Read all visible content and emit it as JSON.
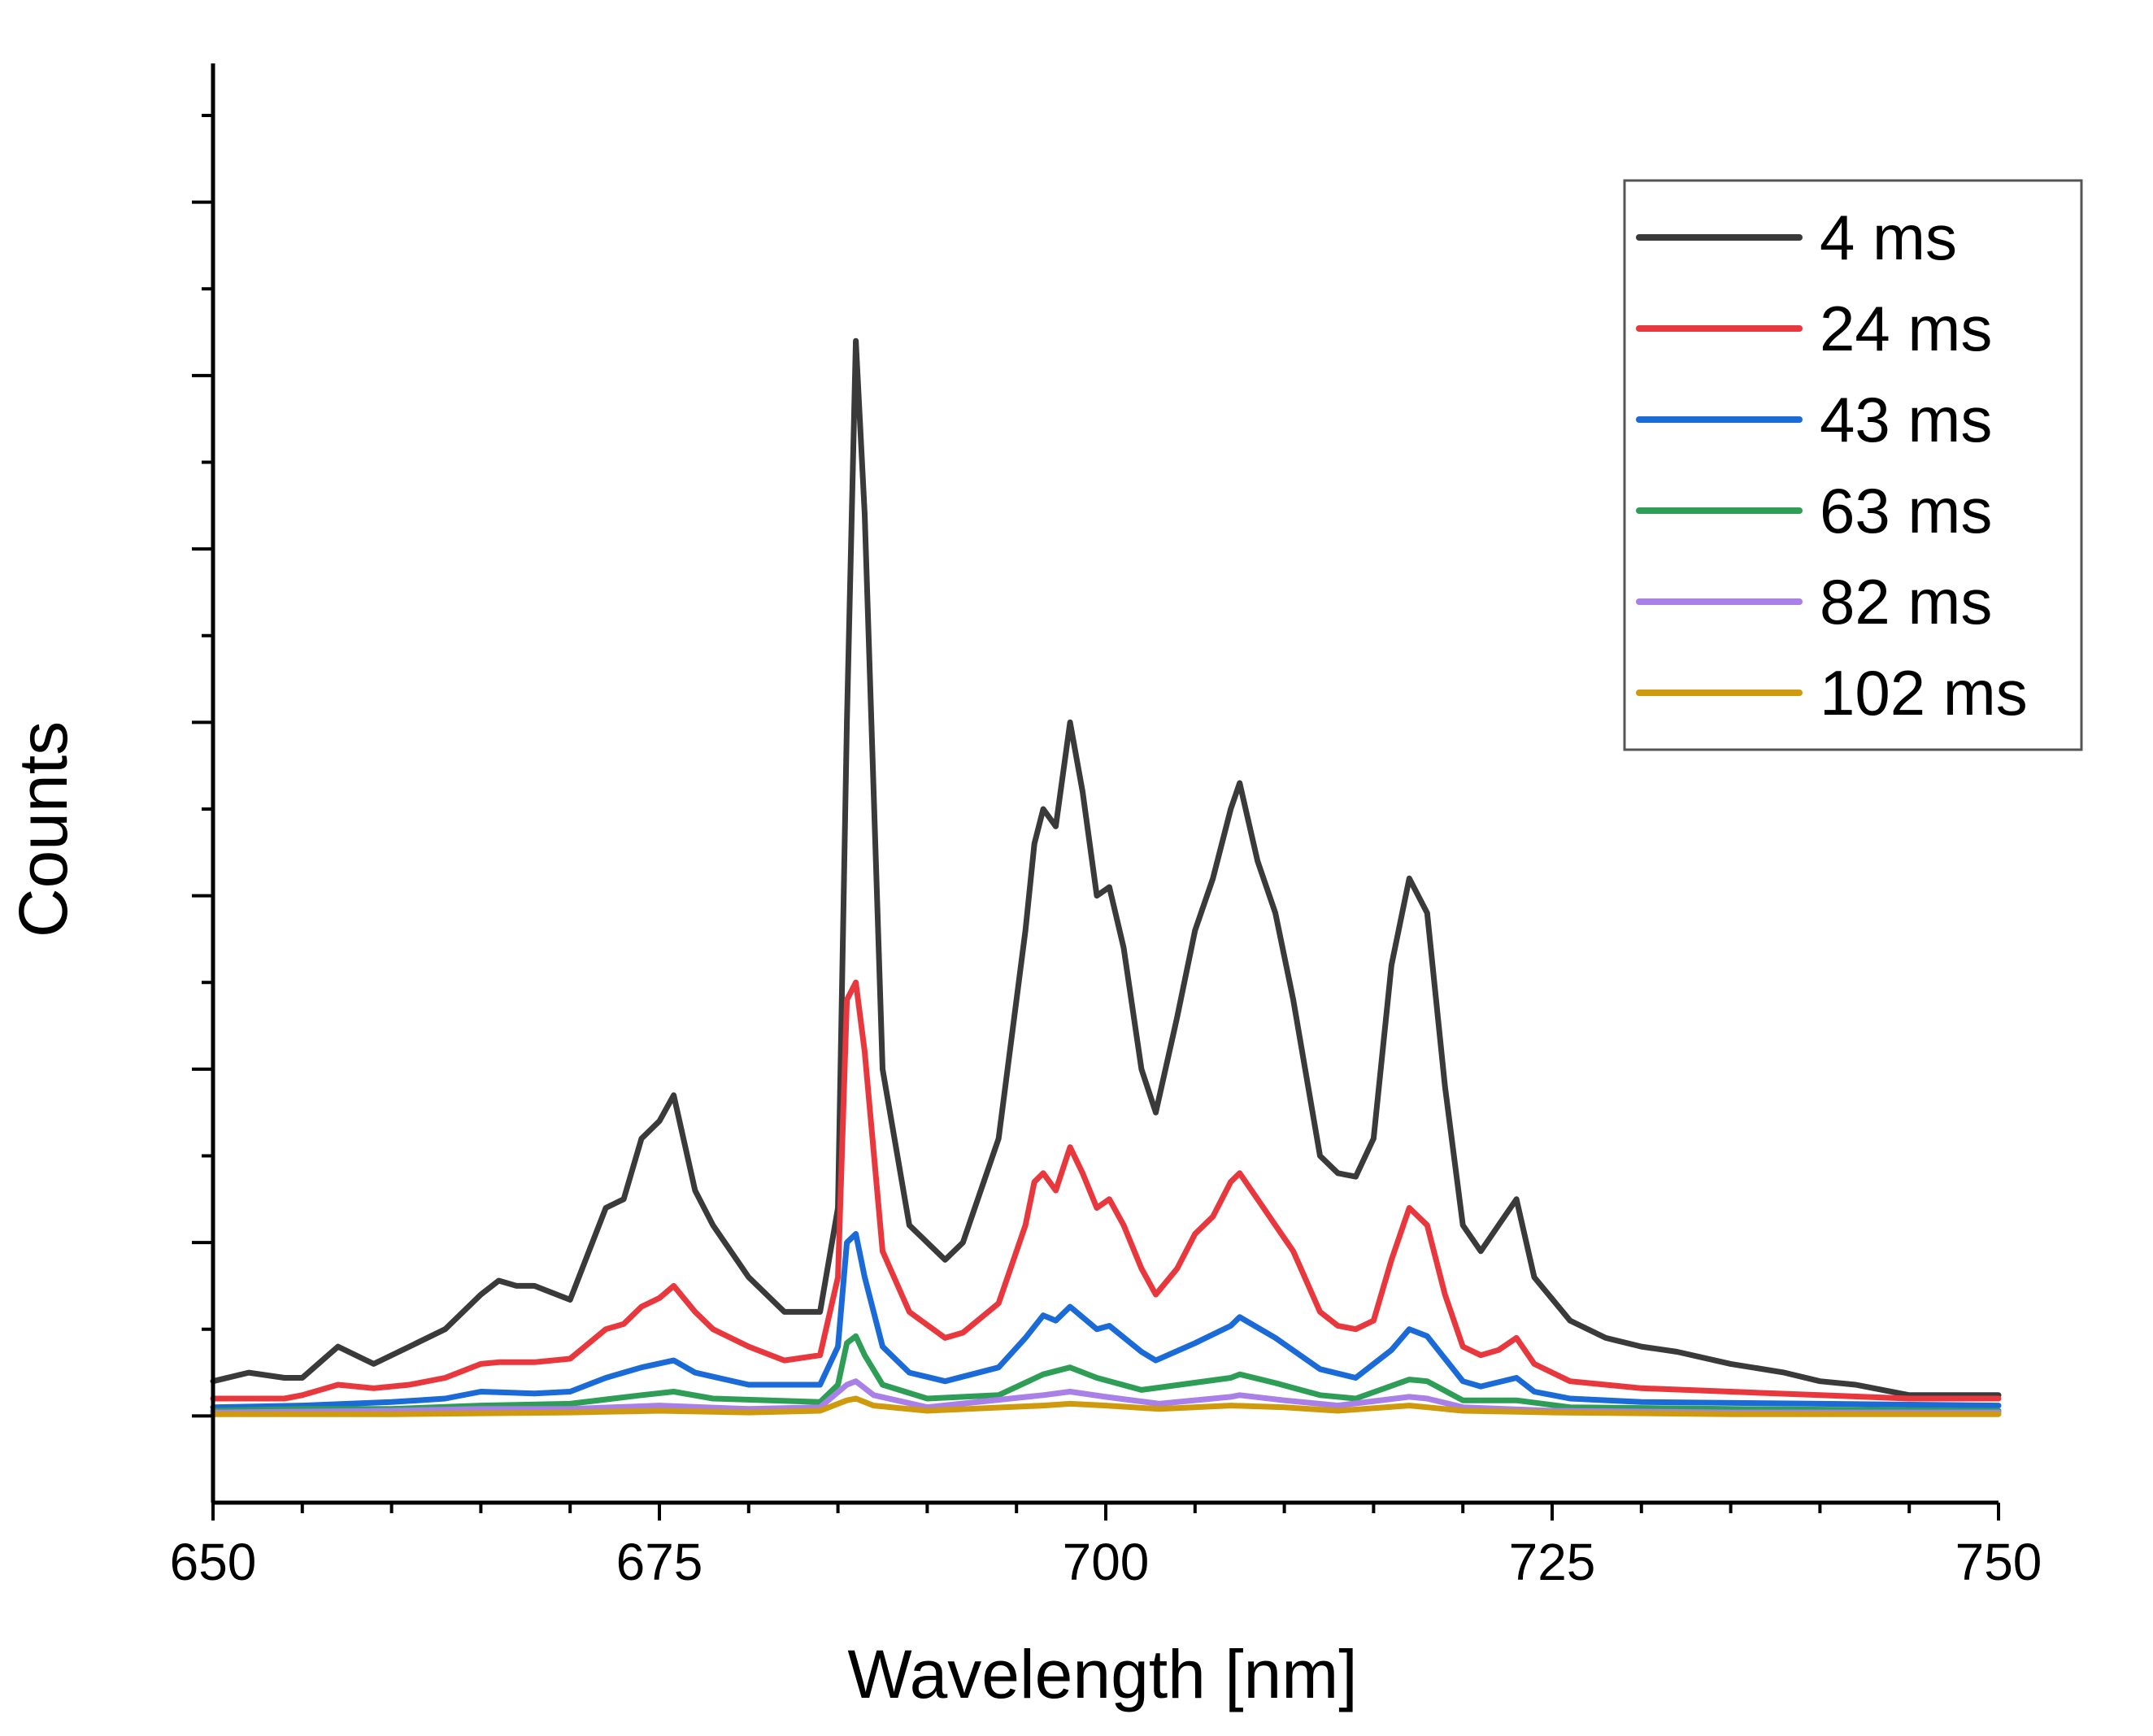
{
  "chart_data": {
    "type": "line",
    "title": "",
    "xlabel": "Wavelength [nm]",
    "ylabel": "Counts",
    "xlim": [
      650,
      750
    ],
    "ylim": [
      -50,
      780
    ],
    "x_major_ticks": [
      650,
      675,
      700,
      725,
      750
    ],
    "x_tick_labels": [
      "650",
      "675",
      "700",
      "725",
      "750"
    ],
    "y_major_ticks": [
      0,
      100,
      200,
      300,
      400,
      500,
      600,
      700
    ],
    "y_tick_labels_visible": false,
    "legend_position": "top-right",
    "series": [
      {
        "name": "4 ms",
        "color": "#3a3a3a",
        "points": [
          [
            650,
            20
          ],
          [
            652,
            25
          ],
          [
            654,
            22
          ],
          [
            655,
            22
          ],
          [
            657,
            40
          ],
          [
            659,
            30
          ],
          [
            661,
            40
          ],
          [
            663,
            50
          ],
          [
            665,
            70
          ],
          [
            666,
            78
          ],
          [
            667,
            75
          ],
          [
            668,
            75
          ],
          [
            670,
            67
          ],
          [
            672,
            120
          ],
          [
            673,
            125
          ],
          [
            674,
            160
          ],
          [
            675,
            170
          ],
          [
            675.8,
            185
          ],
          [
            677,
            130
          ],
          [
            678,
            110
          ],
          [
            680,
            80
          ],
          [
            682,
            60
          ],
          [
            684,
            60
          ],
          [
            685,
            120
          ],
          [
            685.5,
            400
          ],
          [
            686,
            620
          ],
          [
            686.5,
            520
          ],
          [
            687.5,
            200
          ],
          [
            689,
            110
          ],
          [
            691,
            90
          ],
          [
            692,
            100
          ],
          [
            694,
            160
          ],
          [
            695.5,
            280
          ],
          [
            696,
            330
          ],
          [
            696.5,
            350
          ],
          [
            697.2,
            340
          ],
          [
            698,
            400
          ],
          [
            698.7,
            360
          ],
          [
            699.5,
            300
          ],
          [
            700.2,
            305
          ],
          [
            701,
            270
          ],
          [
            702,
            200
          ],
          [
            702.8,
            175
          ],
          [
            704,
            230
          ],
          [
            705,
            280
          ],
          [
            706,
            310
          ],
          [
            707,
            350
          ],
          [
            707.5,
            365
          ],
          [
            708.5,
            320
          ],
          [
            709.5,
            290
          ],
          [
            710.5,
            240
          ],
          [
            712,
            150
          ],
          [
            713,
            140
          ],
          [
            714,
            138
          ],
          [
            715,
            160
          ],
          [
            716,
            260
          ],
          [
            717,
            310
          ],
          [
            718,
            290
          ],
          [
            719,
            190
          ],
          [
            720,
            110
          ],
          [
            721,
            95
          ],
          [
            722,
            110
          ],
          [
            723,
            125
          ],
          [
            724,
            80
          ],
          [
            726,
            55
          ],
          [
            728,
            45
          ],
          [
            730,
            40
          ],
          [
            732,
            37
          ],
          [
            735,
            30
          ],
          [
            738,
            25
          ],
          [
            740,
            20
          ],
          [
            742,
            18
          ],
          [
            745,
            12
          ],
          [
            748,
            12
          ],
          [
            750,
            12
          ]
        ]
      },
      {
        "name": "24 ms",
        "color": "#e8383d",
        "points": [
          [
            650,
            10
          ],
          [
            652,
            10
          ],
          [
            654,
            10
          ],
          [
            655,
            12
          ],
          [
            657,
            18
          ],
          [
            659,
            16
          ],
          [
            661,
            18
          ],
          [
            663,
            22
          ],
          [
            665,
            30
          ],
          [
            666,
            31
          ],
          [
            668,
            31
          ],
          [
            670,
            33
          ],
          [
            672,
            50
          ],
          [
            673,
            53
          ],
          [
            674,
            63
          ],
          [
            675,
            68
          ],
          [
            675.8,
            75
          ],
          [
            677,
            60
          ],
          [
            678,
            50
          ],
          [
            680,
            40
          ],
          [
            682,
            32
          ],
          [
            684,
            35
          ],
          [
            685,
            80
          ],
          [
            685.5,
            240
          ],
          [
            686,
            250
          ],
          [
            686.5,
            210
          ],
          [
            687.5,
            95
          ],
          [
            689,
            60
          ],
          [
            691,
            45
          ],
          [
            692,
            48
          ],
          [
            694,
            65
          ],
          [
            695.5,
            110
          ],
          [
            696,
            135
          ],
          [
            696.5,
            140
          ],
          [
            697.2,
            130
          ],
          [
            698,
            155
          ],
          [
            698.7,
            140
          ],
          [
            699.5,
            120
          ],
          [
            700.2,
            125
          ],
          [
            701,
            110
          ],
          [
            702,
            85
          ],
          [
            702.8,
            70
          ],
          [
            704,
            85
          ],
          [
            705,
            105
          ],
          [
            706,
            115
          ],
          [
            707,
            135
          ],
          [
            707.5,
            140
          ],
          [
            708.5,
            125
          ],
          [
            709.5,
            110
          ],
          [
            710.5,
            95
          ],
          [
            712,
            60
          ],
          [
            713,
            52
          ],
          [
            714,
            50
          ],
          [
            715,
            55
          ],
          [
            716,
            90
          ],
          [
            717,
            120
          ],
          [
            718,
            110
          ],
          [
            719,
            70
          ],
          [
            720,
            40
          ],
          [
            721,
            35
          ],
          [
            722,
            38
          ],
          [
            723,
            45
          ],
          [
            724,
            30
          ],
          [
            726,
            20
          ],
          [
            728,
            18
          ],
          [
            730,
            16
          ],
          [
            735,
            14
          ],
          [
            740,
            12
          ],
          [
            745,
            10
          ],
          [
            750,
            10
          ]
        ]
      },
      {
        "name": "43 ms",
        "color": "#1a6ad8",
        "points": [
          [
            650,
            5
          ],
          [
            655,
            6
          ],
          [
            660,
            8
          ],
          [
            663,
            10
          ],
          [
            665,
            14
          ],
          [
            668,
            13
          ],
          [
            670,
            14
          ],
          [
            672,
            22
          ],
          [
            674,
            28
          ],
          [
            675.8,
            32
          ],
          [
            677,
            25
          ],
          [
            680,
            18
          ],
          [
            684,
            18
          ],
          [
            685,
            40
          ],
          [
            685.5,
            100
          ],
          [
            686,
            105
          ],
          [
            686.5,
            80
          ],
          [
            687.5,
            40
          ],
          [
            689,
            25
          ],
          [
            691,
            20
          ],
          [
            694,
            28
          ],
          [
            695.5,
            45
          ],
          [
            696.5,
            58
          ],
          [
            697.2,
            55
          ],
          [
            698,
            63
          ],
          [
            699.5,
            50
          ],
          [
            700.2,
            52
          ],
          [
            702,
            37
          ],
          [
            702.8,
            32
          ],
          [
            705,
            42
          ],
          [
            707,
            52
          ],
          [
            707.5,
            57
          ],
          [
            709.5,
            45
          ],
          [
            712,
            27
          ],
          [
            714,
            22
          ],
          [
            716,
            38
          ],
          [
            717,
            50
          ],
          [
            718,
            46
          ],
          [
            720,
            20
          ],
          [
            721,
            17
          ],
          [
            723,
            22
          ],
          [
            724,
            14
          ],
          [
            726,
            10
          ],
          [
            730,
            8
          ],
          [
            740,
            7
          ],
          [
            750,
            6
          ]
        ]
      },
      {
        "name": "63 ms",
        "color": "#2e9e57",
        "points": [
          [
            650,
            3
          ],
          [
            655,
            4
          ],
          [
            660,
            4
          ],
          [
            665,
            6
          ],
          [
            670,
            7
          ],
          [
            674,
            12
          ],
          [
            675.8,
            14
          ],
          [
            678,
            10
          ],
          [
            684,
            8
          ],
          [
            685,
            18
          ],
          [
            685.5,
            42
          ],
          [
            686,
            46
          ],
          [
            686.5,
            35
          ],
          [
            687.5,
            18
          ],
          [
            690,
            10
          ],
          [
            694,
            12
          ],
          [
            696.5,
            24
          ],
          [
            698,
            28
          ],
          [
            699.5,
            22
          ],
          [
            702,
            15
          ],
          [
            707,
            22
          ],
          [
            707.5,
            24
          ],
          [
            709.5,
            19
          ],
          [
            712,
            12
          ],
          [
            714,
            10
          ],
          [
            717,
            21
          ],
          [
            718,
            20
          ],
          [
            720,
            9
          ],
          [
            723,
            9
          ],
          [
            726,
            5
          ],
          [
            735,
            4
          ],
          [
            750,
            3
          ]
        ]
      },
      {
        "name": "82 ms",
        "color": "#a97fe8",
        "points": [
          [
            650,
            2
          ],
          [
            660,
            3
          ],
          [
            665,
            4
          ],
          [
            670,
            4
          ],
          [
            675,
            6
          ],
          [
            680,
            4
          ],
          [
            684,
            5
          ],
          [
            685.5,
            18
          ],
          [
            686,
            20
          ],
          [
            687,
            12
          ],
          [
            690,
            5
          ],
          [
            696.5,
            12
          ],
          [
            698,
            14
          ],
          [
            700,
            11
          ],
          [
            703,
            7
          ],
          [
            707,
            11
          ],
          [
            707.5,
            12
          ],
          [
            710,
            9
          ],
          [
            713,
            6
          ],
          [
            717,
            11
          ],
          [
            718,
            10
          ],
          [
            720,
            5
          ],
          [
            725,
            3
          ],
          [
            735,
            2
          ],
          [
            750,
            2
          ]
        ]
      },
      {
        "name": "102 ms",
        "color": "#cf9a0e",
        "points": [
          [
            650,
            1
          ],
          [
            660,
            1
          ],
          [
            670,
            2
          ],
          [
            675,
            3
          ],
          [
            680,
            2
          ],
          [
            684,
            3
          ],
          [
            685.5,
            9
          ],
          [
            686,
            10
          ],
          [
            687,
            6
          ],
          [
            690,
            3
          ],
          [
            696.5,
            6
          ],
          [
            698,
            7
          ],
          [
            700,
            6
          ],
          [
            703,
            4
          ],
          [
            707,
            6
          ],
          [
            710,
            5
          ],
          [
            713,
            3
          ],
          [
            717,
            6
          ],
          [
            718,
            5
          ],
          [
            720,
            3
          ],
          [
            725,
            2
          ],
          [
            735,
            1
          ],
          [
            750,
            1
          ]
        ]
      }
    ]
  }
}
